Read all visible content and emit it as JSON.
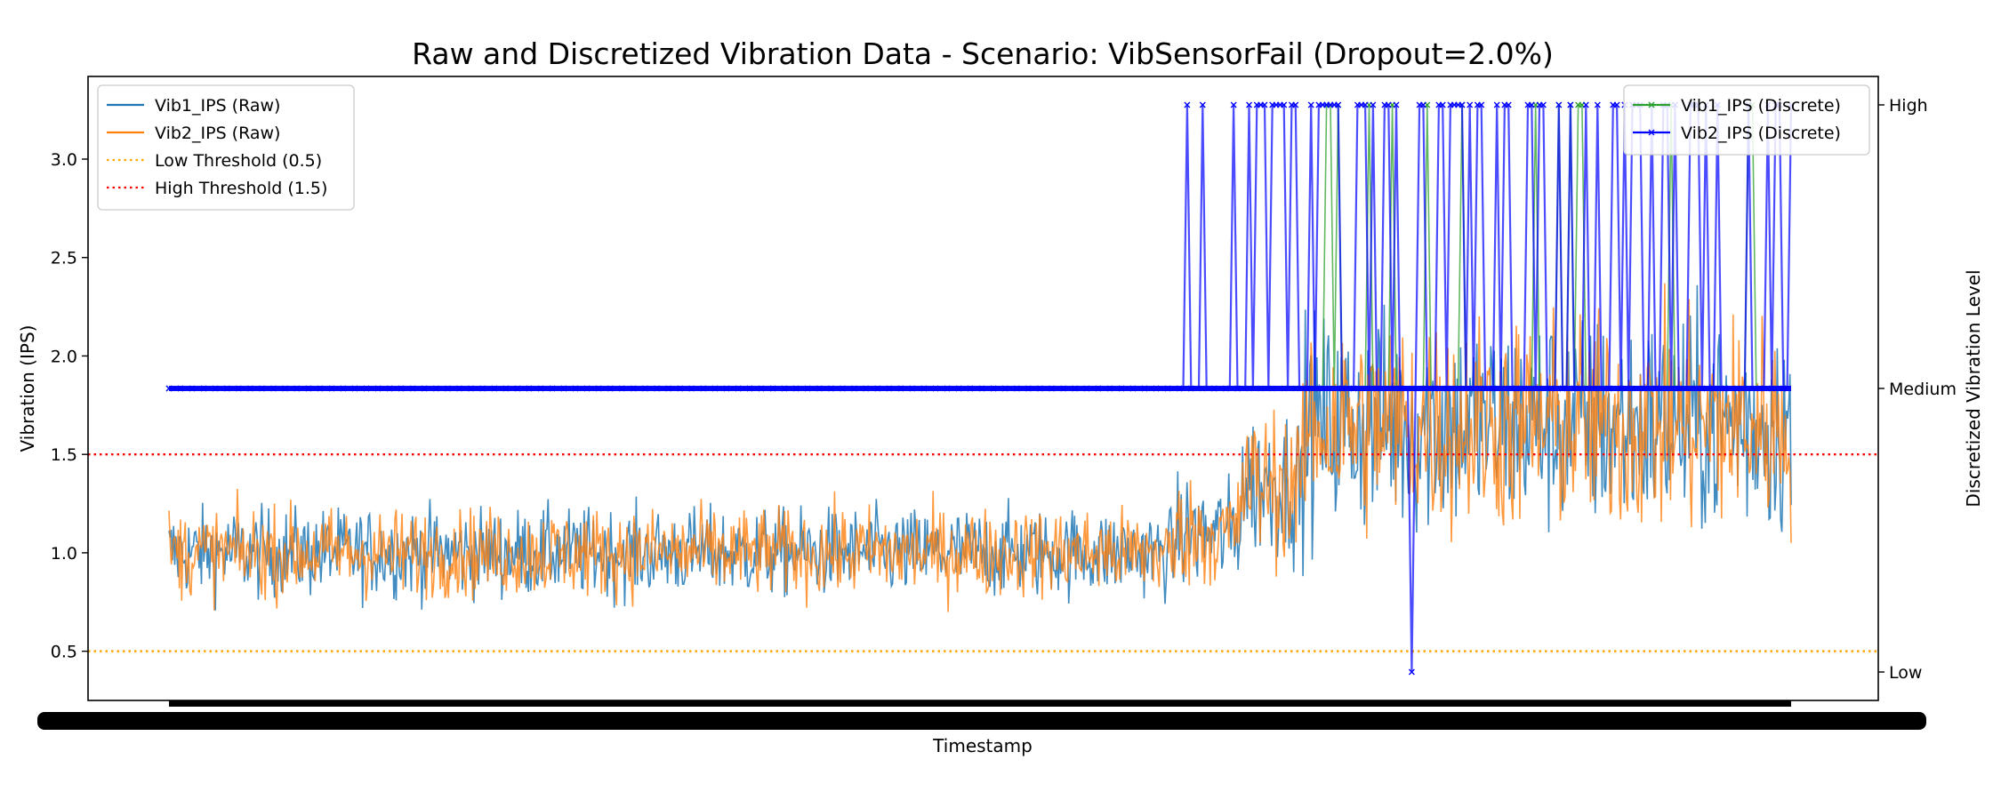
{
  "chart_data": {
    "type": "line",
    "title": "Raw and Discretized Vibration Data - Scenario: VibSensorFail (Dropout=2.0%)",
    "xlabel": "Timestamp",
    "ylabel": "Vibration (IPS)",
    "ylabel_right": "Discretized Vibration Level",
    "ylim": [
      0.25,
      3.42
    ],
    "yticks": [
      0.5,
      1.0,
      1.5,
      2.0,
      2.5,
      3.0
    ],
    "right_levels": [
      "Low",
      "Medium",
      "High"
    ],
    "x_tick_labels_unreadable": true,
    "grid": false,
    "legend_left_position": "upper-left",
    "legend_right_position": "upper-right",
    "thresholds": [
      {
        "name": "Low Threshold (0.5)",
        "value": 0.5,
        "color": "#ffa500",
        "style": "dotted"
      },
      {
        "name": "High Threshold (1.5)",
        "value": 1.5,
        "color": "#ff0000",
        "style": "dotted"
      }
    ],
    "series": [
      {
        "name": "Vib1_IPS (Raw)",
        "axis": "left",
        "color": "#1f77b4",
        "kind": "raw",
        "segments": [
          {
            "t0": 0.0,
            "t1": 0.62,
            "mean": 1.0,
            "spread": 0.13
          },
          {
            "t0": 0.62,
            "t1": 0.66,
            "mean": 1.1,
            "spread": 0.16
          },
          {
            "t0": 0.66,
            "t1": 0.7,
            "mean": 1.35,
            "spread": 0.22
          },
          {
            "t0": 0.7,
            "t1": 1.0,
            "mean": 1.65,
            "spread": 0.32
          }
        ]
      },
      {
        "name": "Vib2_IPS (Raw)",
        "axis": "left",
        "color": "#ff7f0e",
        "kind": "raw",
        "segments": [
          {
            "t0": 0.0,
            "t1": 0.62,
            "mean": 1.0,
            "spread": 0.13
          },
          {
            "t0": 0.62,
            "t1": 0.66,
            "mean": 1.1,
            "spread": 0.16
          },
          {
            "t0": 0.66,
            "t1": 0.7,
            "mean": 1.35,
            "spread": 0.22
          },
          {
            "t0": 0.7,
            "t1": 1.0,
            "mean": 1.65,
            "spread": 0.32
          }
        ]
      },
      {
        "name": "Vib1_IPS (Discrete)",
        "axis": "right",
        "color": "#2ca02c",
        "kind": "discrete",
        "base_level": "Medium",
        "high_from": 0.672,
        "high_probability": 0.08
      },
      {
        "name": "Vib2_IPS (Discrete)",
        "axis": "right",
        "color": "#0000ff",
        "kind": "discrete",
        "base_level": "Medium",
        "high_from": 0.65,
        "high_probability": 0.45,
        "low_at": 0.765
      }
    ]
  }
}
